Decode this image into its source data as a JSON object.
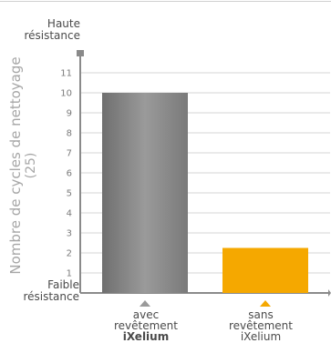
{
  "chart_data": {
    "type": "bar",
    "ylabel": "Nombre de cycles de nettoyage",
    "ylabel_sub": "(25)",
    "top_label": [
      "Haute",
      "résistance"
    ],
    "bottom_label": [
      "Faible",
      "résistance"
    ],
    "yticks": [
      "1",
      "2",
      "3",
      "4",
      "5",
      "6",
      "7",
      "8",
      "9",
      "10",
      "11"
    ],
    "ylim": [
      0,
      12
    ],
    "grid": true,
    "categories": [
      {
        "lines": [
          "avec",
          "revêtement"
        ],
        "bold": "iXelium",
        "value": 10,
        "color": "#8c8c8c",
        "marker_color": "#9a9a9a"
      },
      {
        "lines": [
          "sans",
          "revêtement"
        ],
        "bold": "iXelium",
        "value": 2.25,
        "color": "#f5a800",
        "marker_color": "#f5a800"
      }
    ]
  }
}
